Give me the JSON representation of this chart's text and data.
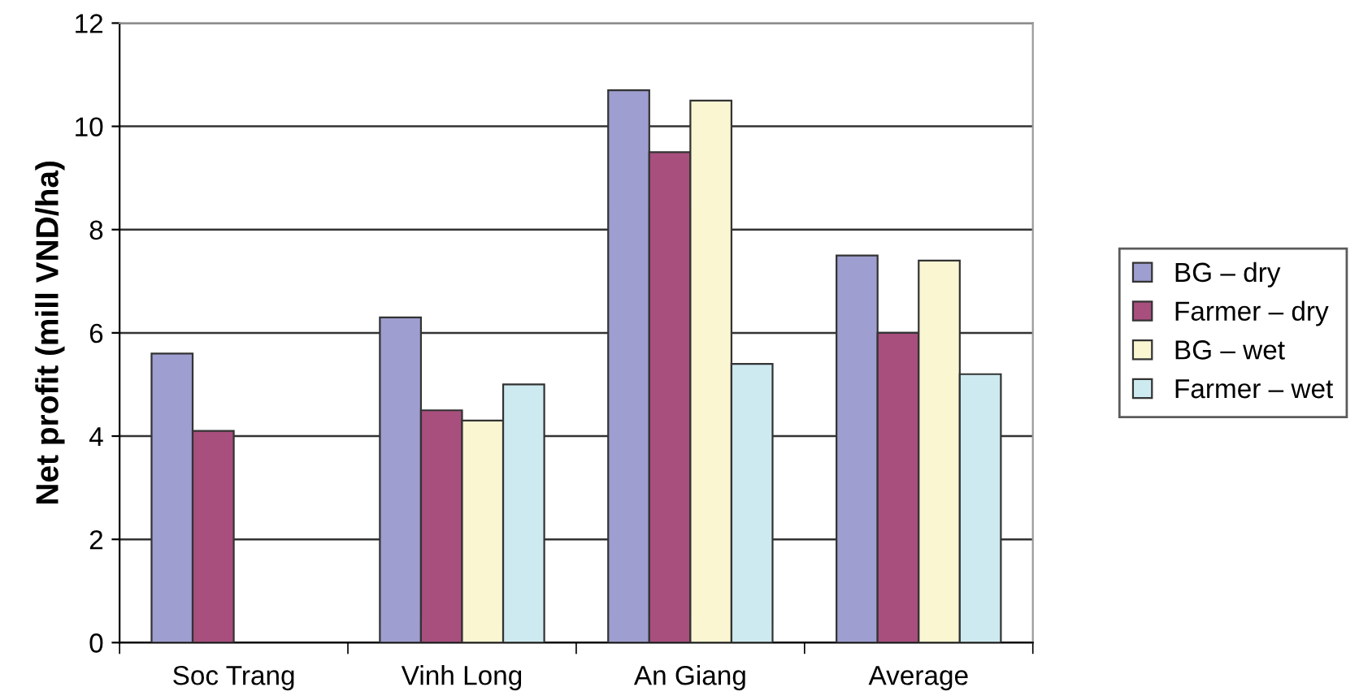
{
  "chart_data": {
    "type": "bar",
    "ylabel": "Net profit (mill VND/ha)",
    "categories": [
      "Soc Trang",
      "Vinh Long",
      "An Giang",
      "Average"
    ],
    "series": [
      {
        "name": "BG – dry",
        "color": "#9e9ed0",
        "values": [
          5.6,
          6.3,
          10.7,
          7.5
        ]
      },
      {
        "name": "Farmer – dry",
        "color": "#a84f7e",
        "values": [
          4.1,
          4.5,
          9.5,
          6.0
        ]
      },
      {
        "name": "BG – wet",
        "color": "#faf6d2",
        "values": [
          null,
          4.3,
          10.5,
          7.4
        ]
      },
      {
        "name": "Farmer – wet",
        "color": "#cdeaf0",
        "values": [
          null,
          5.0,
          5.4,
          5.2
        ]
      }
    ],
    "ylim": [
      0,
      12
    ],
    "yticks": [
      0,
      2,
      4,
      6,
      8,
      10,
      12
    ],
    "grid": "y",
    "legend": "right"
  }
}
